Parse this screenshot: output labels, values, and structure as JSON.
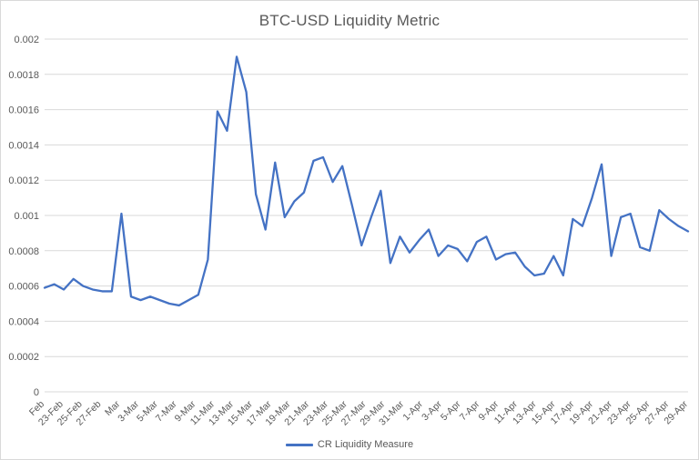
{
  "window": {
    "background": "#FFFFFF",
    "border_color": "#D9D9D9"
  },
  "chart_data": {
    "type": "line",
    "title": "BTC-USD Liquidity Metric",
    "xlabel": "",
    "ylabel": "",
    "grid": "horizontal-on",
    "legend_position": "bottom",
    "grid_color": "#D9D9D9",
    "text_color": "#595959",
    "ylim": [
      0,
      0.002
    ],
    "y_tick_values": [
      0,
      0.0002,
      0.0004,
      0.0006,
      0.0008,
      0.001,
      0.0012,
      0.0014,
      0.0016,
      0.0018,
      0.002
    ],
    "y_tick_labels": [
      "0",
      "0.0002",
      "0.0004",
      "0.0006",
      "0.0008",
      "0.001",
      "0.0012",
      "0.0014",
      "0.0016",
      "0.0018",
      "0.002"
    ],
    "x_tick_labels": [
      "Feb",
      "23-Feb",
      "25-Feb",
      "27-Feb",
      "Mar",
      "3-Mar",
      "5-Mar",
      "7-Mar",
      "9-Mar",
      "11-Mar",
      "13-Mar",
      "15-Mar",
      "17-Mar",
      "19-Mar",
      "21-Mar",
      "23-Mar",
      "25-Mar",
      "27-Mar",
      "29-Mar",
      "31-Mar",
      "1-Apr",
      "3-Apr",
      "5-Apr",
      "7-Apr",
      "9-Apr",
      "11-Apr",
      "13-Apr",
      "15-Apr",
      "17-Apr",
      "19-Apr",
      "21-Apr",
      "23-Apr",
      "25-Apr",
      "27-Apr",
      "29-Apr"
    ],
    "x": [
      "21-Feb",
      "22-Feb",
      "23-Feb",
      "24-Feb",
      "25-Feb",
      "26-Feb",
      "27-Feb",
      "28-Feb",
      "1-Mar",
      "2-Mar",
      "3-Mar",
      "4-Mar",
      "5-Mar",
      "6-Mar",
      "7-Mar",
      "8-Mar",
      "9-Mar",
      "10-Mar",
      "11-Mar",
      "12-Mar",
      "13-Mar",
      "14-Mar",
      "15-Mar",
      "16-Mar",
      "17-Mar",
      "18-Mar",
      "19-Mar",
      "20-Mar",
      "21-Mar",
      "22-Mar",
      "23-Mar",
      "24-Mar",
      "25-Mar",
      "26-Mar",
      "27-Mar",
      "28-Mar",
      "29-Mar",
      "30-Mar",
      "31-Mar",
      "1-Apr",
      "2-Apr",
      "3-Apr",
      "4-Apr",
      "5-Apr",
      "6-Apr",
      "7-Apr",
      "8-Apr",
      "9-Apr",
      "10-Apr",
      "11-Apr",
      "12-Apr",
      "13-Apr",
      "14-Apr",
      "15-Apr",
      "16-Apr",
      "17-Apr",
      "18-Apr",
      "19-Apr",
      "20-Apr",
      "21-Apr",
      "22-Apr",
      "23-Apr",
      "24-Apr",
      "25-Apr",
      "26-Apr",
      "27-Apr",
      "28-Apr",
      "29-Apr"
    ],
    "series": [
      {
        "name": "CR Liquidity Measure",
        "color": "#4472C4",
        "values": [
          0.00059,
          0.00061,
          0.00058,
          0.00064,
          0.0006,
          0.00058,
          0.00057,
          0.00057,
          0.00101,
          0.00054,
          0.00052,
          0.00054,
          0.00052,
          0.0005,
          0.00049,
          0.00052,
          0.00055,
          0.00075,
          0.00159,
          0.00148,
          0.0019,
          0.0017,
          0.00112,
          0.00092,
          0.0013,
          0.00099,
          0.00108,
          0.00113,
          0.00131,
          0.00133,
          0.00119,
          0.00128,
          0.00106,
          0.00083,
          0.00099,
          0.00114,
          0.00073,
          0.00088,
          0.00079,
          0.00086,
          0.00092,
          0.00077,
          0.00083,
          0.00081,
          0.00074,
          0.00085,
          0.00088,
          0.00075,
          0.00078,
          0.00079,
          0.00071,
          0.00066,
          0.00067,
          0.00077,
          0.00066,
          0.00098,
          0.00094,
          0.0011,
          0.00129,
          0.00077,
          0.00099,
          0.00101,
          0.00082,
          0.0008,
          0.00103,
          0.00098,
          0.00094,
          0.00091
        ]
      }
    ]
  }
}
